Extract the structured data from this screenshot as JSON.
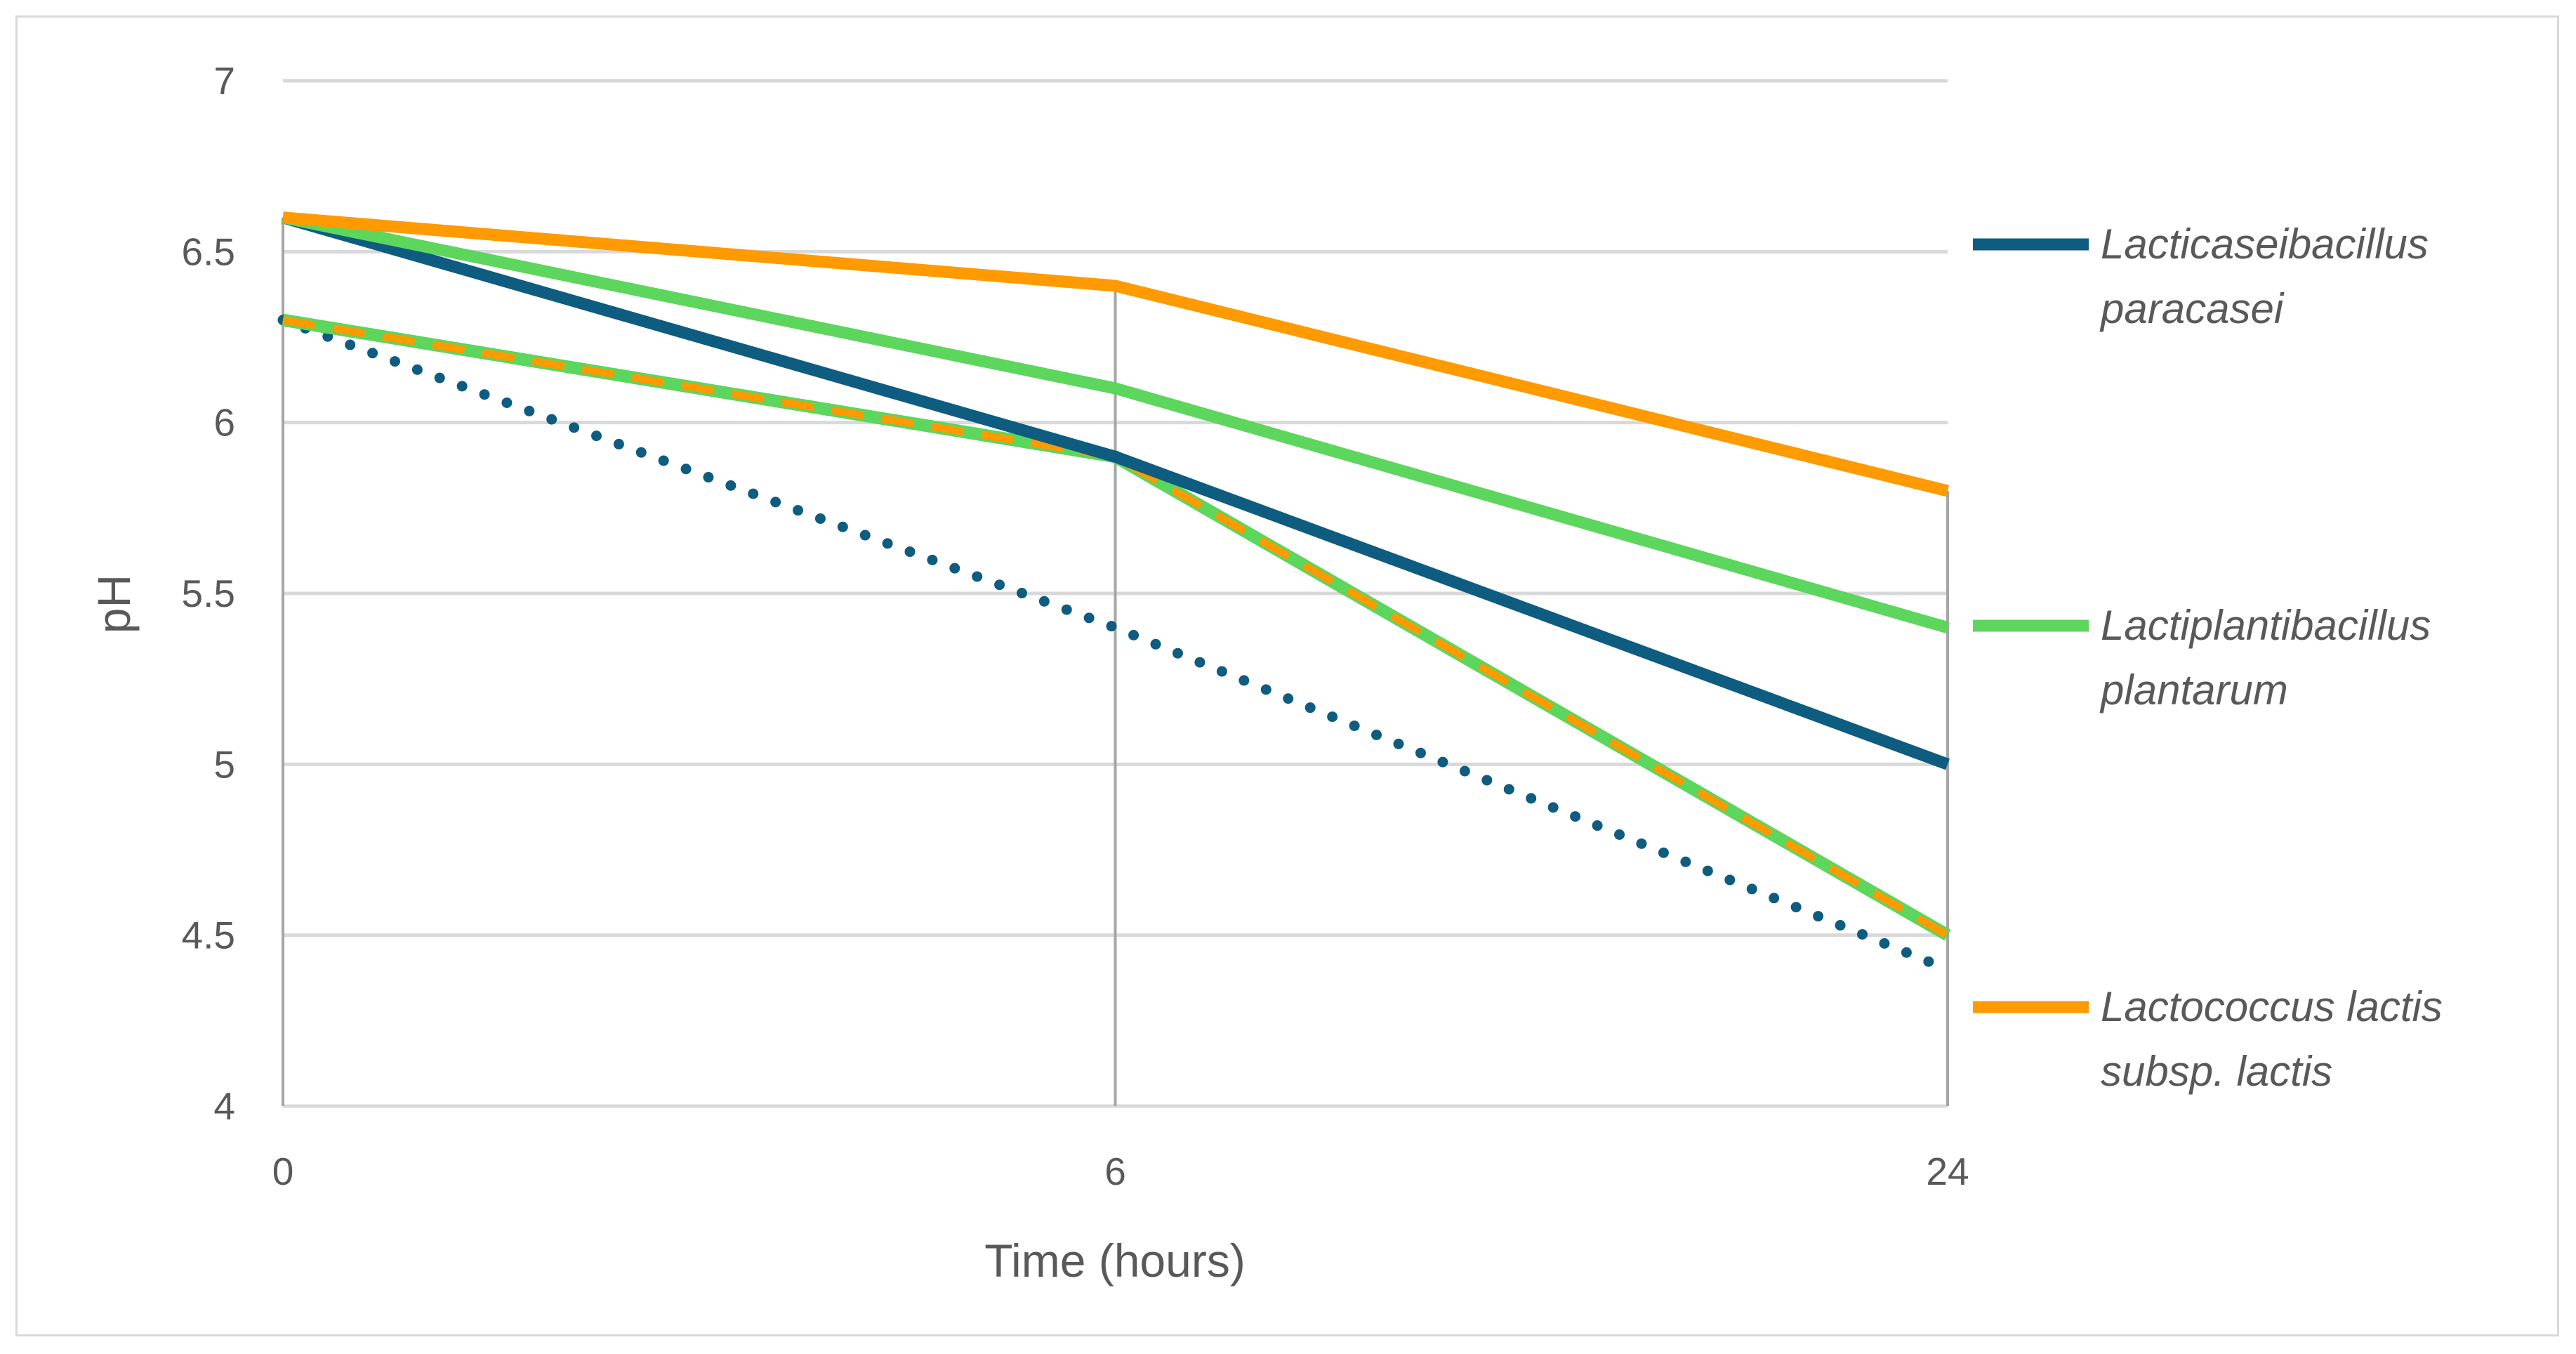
{
  "chart_data": {
    "type": "line",
    "categories": [
      "0",
      "6",
      "24"
    ],
    "xlabel": "Time (hours)",
    "ylabel": "pH",
    "ylim": [
      4,
      7
    ],
    "yticks": [
      "4",
      "4.5",
      "5",
      "5.5",
      "6",
      "6.5",
      "7"
    ],
    "grid": true,
    "legend_placement": "right",
    "series": [
      {
        "name": "Lacticaseibacillus paracasei",
        "legend_lines": [
          "Lacticaseibacillus",
          "paracasei"
        ],
        "values": [
          6.6,
          5.9,
          5.0
        ],
        "color": "#0e5c80",
        "style": "solid",
        "in_legend": true
      },
      {
        "name": "Lactiplantibacillus plantarum",
        "legend_lines": [
          "Lactiplantibacillus",
          "plantarum"
        ],
        "values": [
          6.6,
          6.1,
          5.4
        ],
        "color": "#5cd65c",
        "style": "solid",
        "in_legend": true
      },
      {
        "name": "Lactococcus lactis subsp. lactis",
        "legend_lines": [
          "Lactococcus lactis",
          "subsp. lactis"
        ],
        "values": [
          6.6,
          6.4,
          5.8
        ],
        "color": "#ff9a00",
        "style": "solid",
        "in_legend": true
      },
      {
        "values": [
          6.3,
          5.4,
          4.4
        ],
        "color": "#0e5c80",
        "style": "dotted",
        "in_legend": false
      },
      {
        "values": [
          6.3,
          5.9,
          4.5
        ],
        "color": "#5cd65c",
        "style": "dashed",
        "dash_overlay_color": "#ff9a00",
        "in_legend": false
      }
    ]
  }
}
